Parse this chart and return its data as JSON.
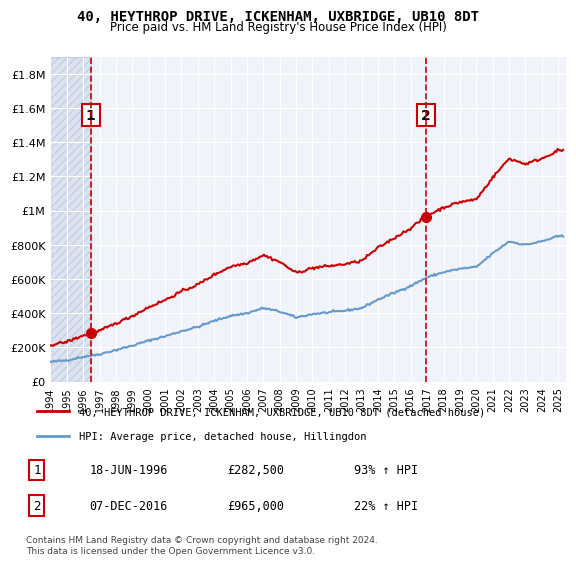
{
  "title": "40, HEYTHROP DRIVE, ICKENHAM, UXBRIDGE, UB10 8DT",
  "subtitle": "Price paid vs. HM Land Registry's House Price Index (HPI)",
  "xlabel": "",
  "ylabel": "",
  "ylim": [
    0,
    1900000
  ],
  "xlim_start": 1994.0,
  "xlim_end": 2025.5,
  "sale1_date": 1996.46,
  "sale1_price": 282500,
  "sale1_label": "1",
  "sale2_date": 2016.93,
  "sale2_price": 965000,
  "sale2_label": "2",
  "hpi_line_color": "#6699cc",
  "price_line_color": "#cc0000",
  "dashed_line_color": "#cc0000",
  "background_hatch_color": "#d0d8e8",
  "legend_label_price": "40, HEYTHROP DRIVE, ICKENHAM, UXBRIDGE, UB10 8DT (detached house)",
  "legend_label_hpi": "HPI: Average price, detached house, Hillingdon",
  "annotation1_date": "18-JUN-1996",
  "annotation1_price": "£282,500",
  "annotation1_hpi": "93% ↑ HPI",
  "annotation2_date": "07-DEC-2016",
  "annotation2_price": "£965,000",
  "annotation2_hpi": "22% ↑ HPI",
  "footer": "Contains HM Land Registry data © Crown copyright and database right 2024.\nThis data is licensed under the Open Government Licence v3.0.",
  "yticks": [
    0,
    200000,
    400000,
    600000,
    800000,
    1000000,
    1200000,
    1400000,
    1600000,
    1800000
  ],
  "ytick_labels": [
    "£0",
    "£200K",
    "£400K",
    "£600K",
    "£800K",
    "£1M",
    "£1.2M",
    "£1.4M",
    "£1.6M",
    "£1.8M"
  ]
}
